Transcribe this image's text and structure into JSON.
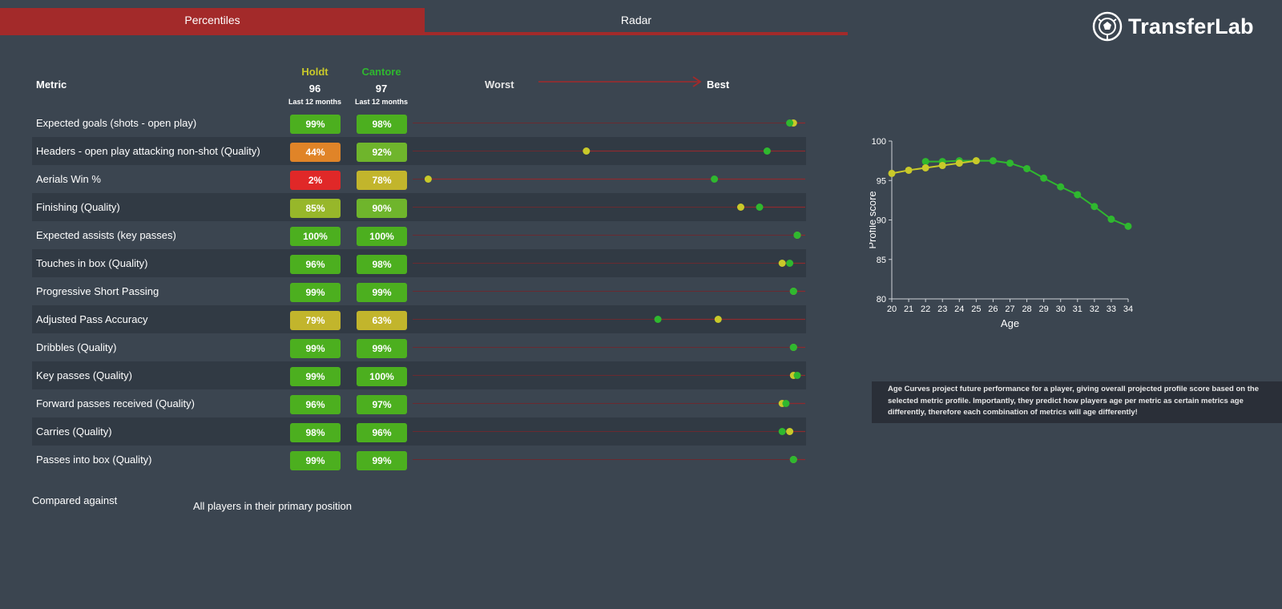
{
  "tabs": [
    {
      "label": "Percentiles",
      "active": true
    },
    {
      "label": "Radar",
      "active": false
    }
  ],
  "logo": {
    "text": "TransferLab"
  },
  "header": {
    "metric_label": "Metric",
    "worst_label": "Worst",
    "best_label": "Best",
    "players": [
      {
        "name": "Holdt",
        "score": "96",
        "period": "Last 12 months",
        "color": "#c9c92a"
      },
      {
        "name": "Cantore",
        "score": "97",
        "period": "Last 12 months",
        "color": "#2fb82f"
      }
    ]
  },
  "metrics": [
    {
      "label": "Expected goals (shots - open play)",
      "p1": "99%",
      "p2": "98%",
      "v1": 99,
      "v2": 98
    },
    {
      "label": "Headers - open play attacking non-shot (Quality)",
      "p1": "44%",
      "p2": "92%",
      "v1": 44,
      "v2": 92
    },
    {
      "label": "Aerials Win %",
      "p1": "2%",
      "p2": "78%",
      "v1": 2,
      "v2": 78
    },
    {
      "label": "Finishing (Quality)",
      "p1": "85%",
      "p2": "90%",
      "v1": 85,
      "v2": 90
    },
    {
      "label": "Expected assists (key passes)",
      "p1": "100%",
      "p2": "100%",
      "v1": 100,
      "v2": 100
    },
    {
      "label": "Touches in box (Quality)",
      "p1": "96%",
      "p2": "98%",
      "v1": 96,
      "v2": 98
    },
    {
      "label": "Progressive Short Passing",
      "p1": "99%",
      "p2": "99%",
      "v1": 99,
      "v2": 99
    },
    {
      "label": "Adjusted Pass Accuracy",
      "p1": "79%",
      "p2": "63%",
      "v1": 79,
      "v2": 63
    },
    {
      "label": "Dribbles (Quality)",
      "p1": "99%",
      "p2": "99%",
      "v1": 99,
      "v2": 99
    },
    {
      "label": "Key passes (Quality)",
      "p1": "99%",
      "p2": "100%",
      "v1": 99,
      "v2": 100
    },
    {
      "label": "Forward passes received (Quality)",
      "p1": "96%",
      "p2": "97%",
      "v1": 96,
      "v2": 97
    },
    {
      "label": "Carries (Quality)",
      "p1": "98%",
      "p2": "96%",
      "v1": 98,
      "v2": 96
    },
    {
      "label": "Passes into box (Quality)",
      "p1": "99%",
      "p2": "99%",
      "v1": 99,
      "v2": 99
    }
  ],
  "comparison": {
    "label": "Compared against",
    "value": "All players in their primary position"
  },
  "chart_data": {
    "type": "line",
    "xlabel": "Age",
    "ylabel": "Profile score",
    "xlim": [
      20,
      34
    ],
    "ylim": [
      80,
      100
    ],
    "xticks": [
      "20",
      "21",
      "22",
      "23",
      "24",
      "25",
      "26",
      "27",
      "28",
      "29",
      "30",
      "31",
      "32",
      "33",
      "34"
    ],
    "yticks": [
      "80",
      "85",
      "90",
      "95",
      "100"
    ],
    "series": [
      {
        "name": "Holdt",
        "color": "#c9c92a",
        "x": [
          20,
          21,
          22,
          23,
          24,
          25
        ],
        "y": [
          95.9,
          96.3,
          96.6,
          96.9,
          97.2,
          97.5
        ]
      },
      {
        "name": "Cantore",
        "color": "#2fb82f",
        "x": [
          22,
          23,
          24,
          25,
          26,
          27,
          28,
          29,
          30,
          31,
          32,
          33,
          34
        ],
        "y": [
          97.4,
          97.4,
          97.5,
          97.5,
          97.5,
          97.2,
          96.5,
          95.3,
          94.2,
          93.2,
          91.7,
          90.1,
          89.2
        ]
      }
    ]
  },
  "note": {
    "text": "Age Curves project future performance for a player, giving overall projected profile score based on the selected metric profile. Importantly, they predict how players age per metric as certain metrics age differently, therefore each combination of metrics will age differently!"
  }
}
